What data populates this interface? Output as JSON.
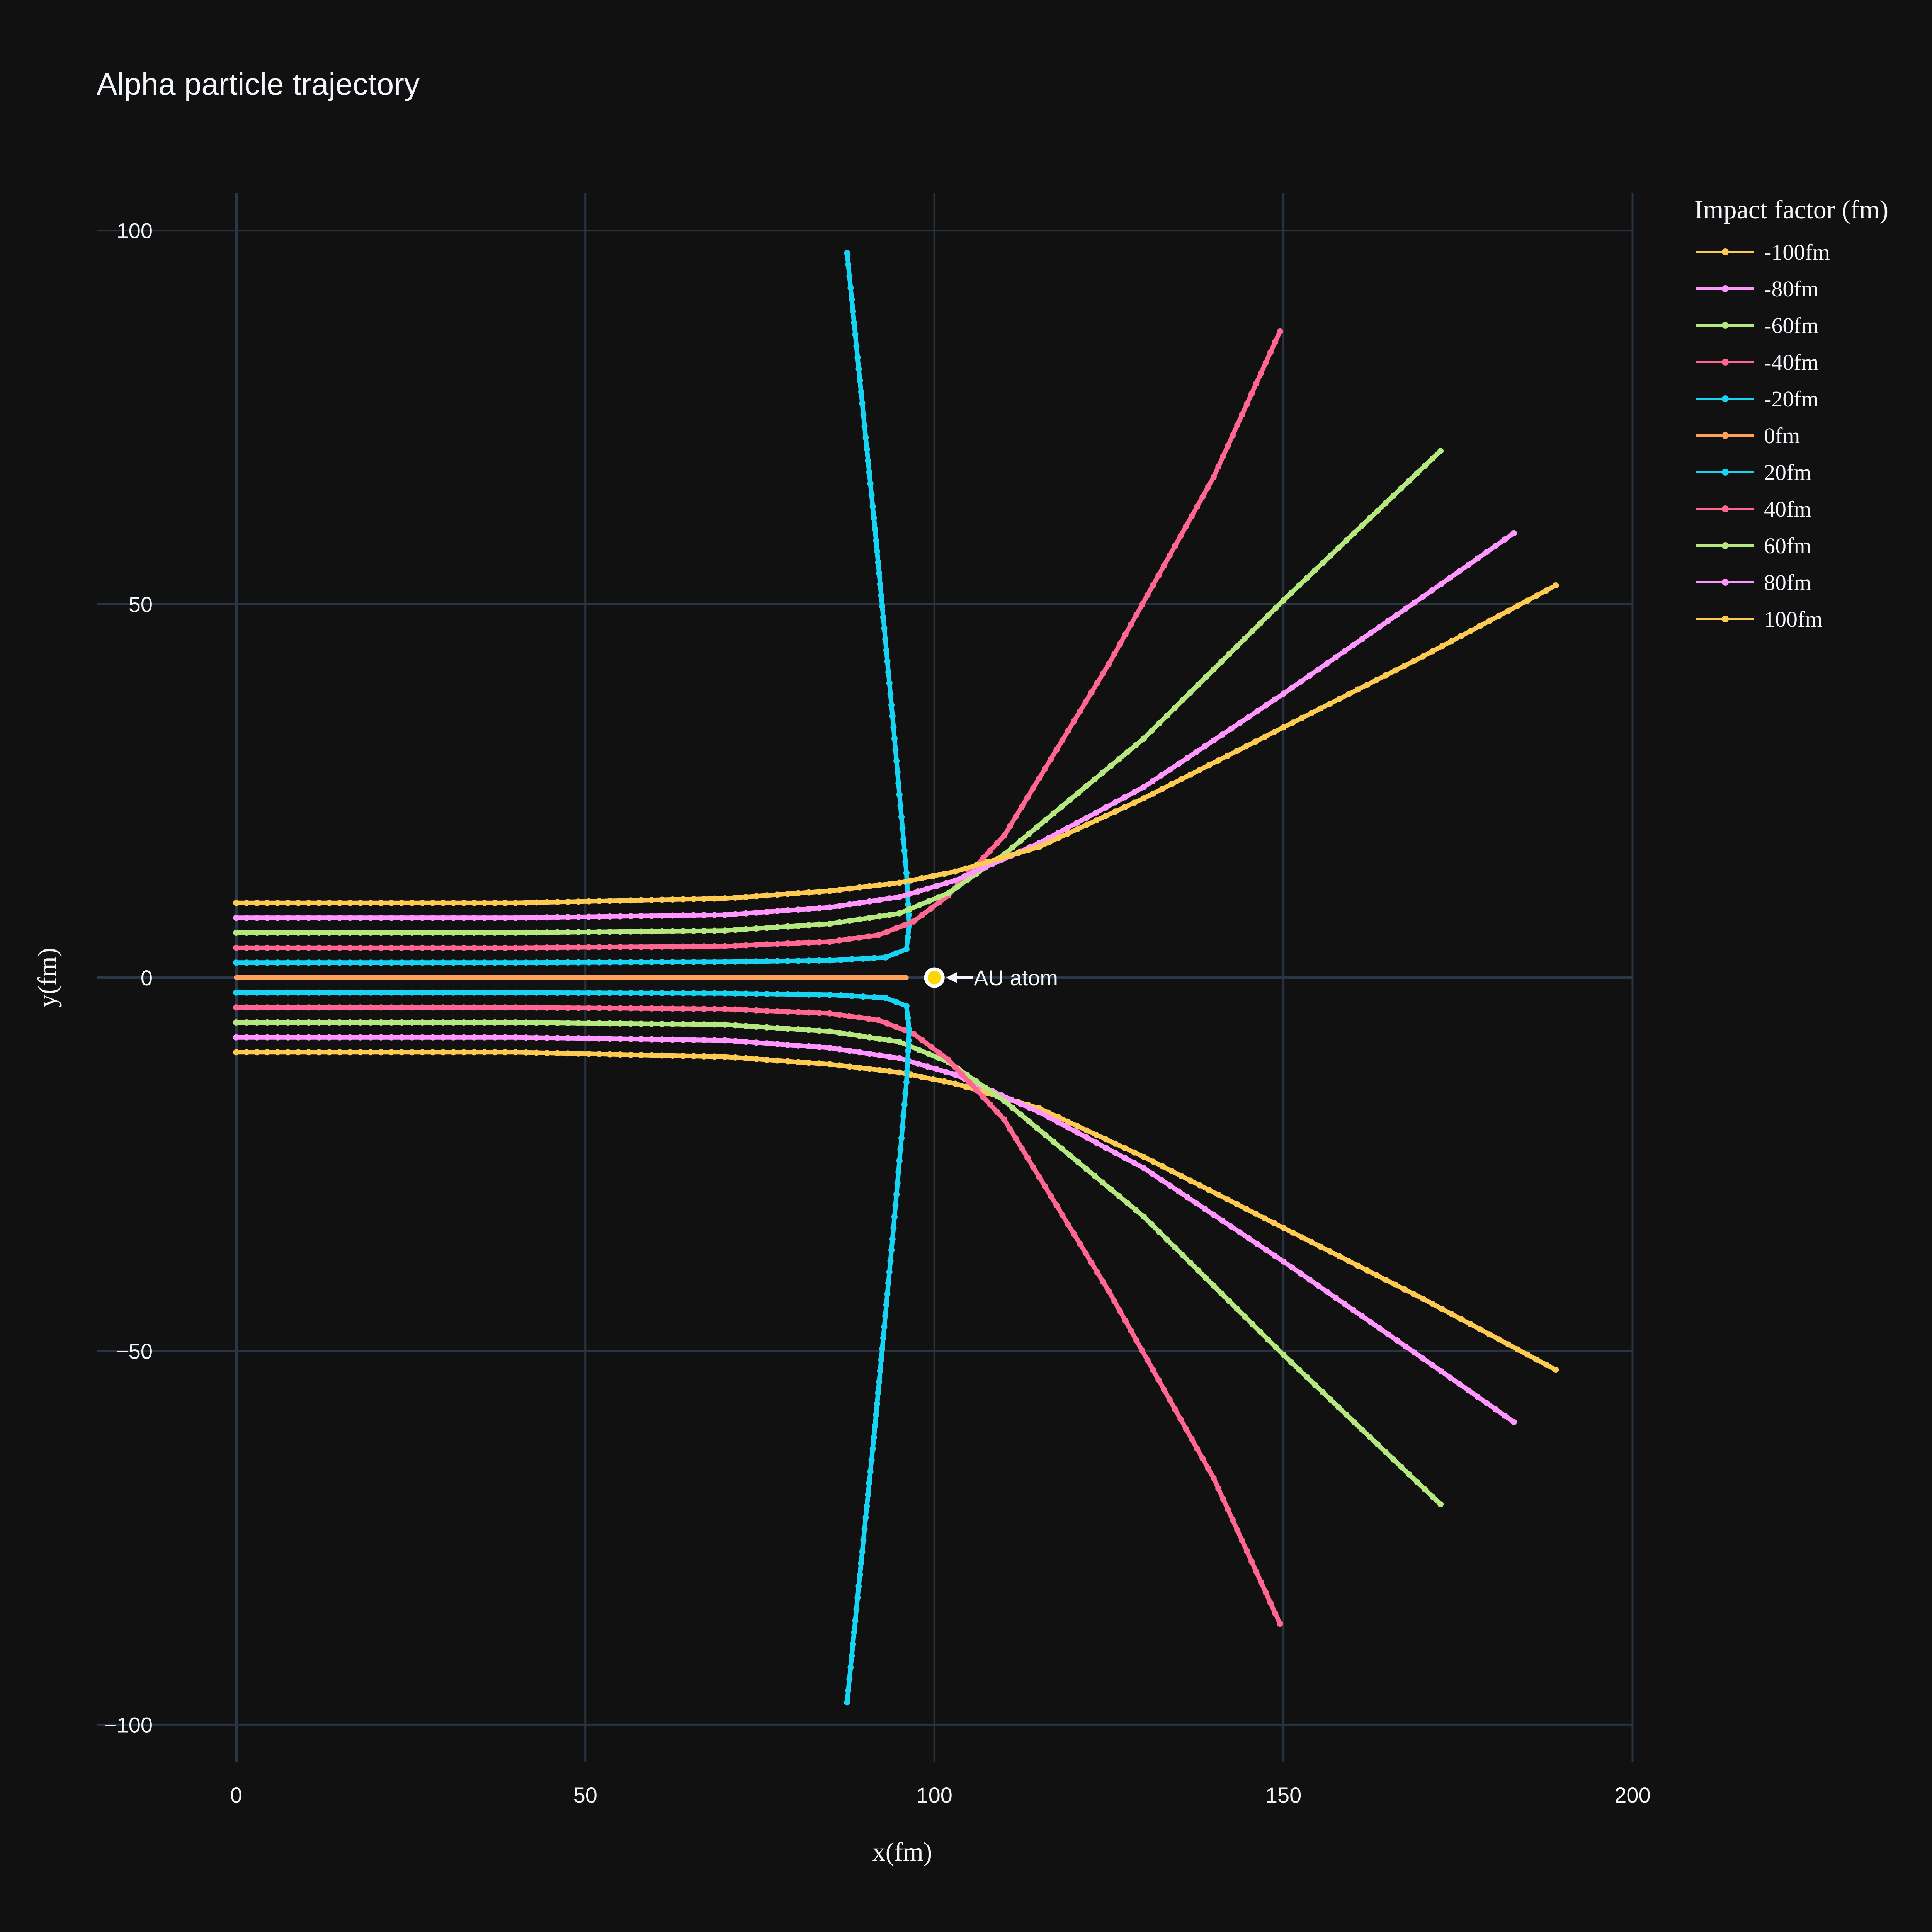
{
  "chart_data": {
    "type": "line",
    "title": "Alpha particle trajectory",
    "xlabel": "x(fm)",
    "ylabel": "y(fm)",
    "xlim": [
      -20,
      200
    ],
    "ylim": [
      -105,
      105
    ],
    "x_ticks": [
      0,
      50,
      100,
      150,
      200
    ],
    "y_ticks": [
      -100,
      -50,
      0,
      50,
      100
    ],
    "x_tick_labels": [
      "0",
      "50",
      "100",
      "150",
      "200"
    ],
    "y_tick_labels": [
      "−100",
      "−50",
      "0",
      "50",
      "100"
    ],
    "grid": true,
    "legend_title": "Impact factor (fm)",
    "legend_position": "right",
    "series": [
      {
        "name": "-100fm",
        "color": "#FECB52",
        "points": [
          [
            0,
            -10
          ],
          [
            40,
            -10
          ],
          [
            70,
            -10.6
          ],
          [
            85,
            -11.6
          ],
          [
            95,
            -12.7
          ],
          [
            103,
            -14.2
          ],
          [
            115,
            -17.5
          ],
          [
            130,
            -24
          ],
          [
            150,
            -33.5
          ],
          [
            170,
            -43
          ],
          [
            189,
            -52.5
          ]
        ]
      },
      {
        "name": "-80fm",
        "color": "#FF97FF",
        "points": [
          [
            0,
            -8
          ],
          [
            40,
            -8
          ],
          [
            70,
            -8.4
          ],
          [
            85,
            -9.4
          ],
          [
            95,
            -10.8
          ],
          [
            103,
            -13
          ],
          [
            115,
            -18
          ],
          [
            130,
            -25.5
          ],
          [
            150,
            -38
          ],
          [
            170,
            -51
          ],
          [
            183,
            -59.5
          ]
        ]
      },
      {
        "name": "-60fm",
        "color": "#B6E880",
        "points": [
          [
            0,
            -6
          ],
          [
            40,
            -6
          ],
          [
            70,
            -6.3
          ],
          [
            85,
            -7.2
          ],
          [
            95,
            -8.6
          ],
          [
            102,
            -11.3
          ],
          [
            110,
            -16.5
          ],
          [
            130,
            -32
          ],
          [
            150,
            -50.5
          ],
          [
            172.5,
            -70.5
          ]
        ]
      },
      {
        "name": "-40fm",
        "color": "#FF6692",
        "points": [
          [
            0,
            -4
          ],
          [
            40,
            -4
          ],
          [
            70,
            -4.2
          ],
          [
            85,
            -4.8
          ],
          [
            92,
            -5.7
          ],
          [
            97,
            -7.5
          ],
          [
            102,
            -11
          ],
          [
            110,
            -19
          ],
          [
            125,
            -42
          ],
          [
            140,
            -67
          ],
          [
            149.5,
            -86.5
          ]
        ]
      },
      {
        "name": "-20fm",
        "color": "#19D3F3",
        "points": [
          [
            0,
            -2
          ],
          [
            40,
            -2
          ],
          [
            70,
            -2.1
          ],
          [
            85,
            -2.3
          ],
          [
            93,
            -2.7
          ],
          [
            96,
            -3.8
          ],
          [
            96.4,
            -7
          ],
          [
            96,
            -14
          ],
          [
            94,
            -35
          ],
          [
            91.5,
            -60
          ],
          [
            89,
            -83
          ],
          [
            87.5,
            -97
          ]
        ]
      },
      {
        "name": "0fm",
        "color": "#FFA15A",
        "points": [
          [
            0,
            0
          ],
          [
            96,
            0
          ]
        ]
      },
      {
        "name": "20fm",
        "color": "#19D3F3",
        "points": [
          [
            0,
            2
          ],
          [
            40,
            2
          ],
          [
            70,
            2.1
          ],
          [
            85,
            2.3
          ],
          [
            93,
            2.7
          ],
          [
            96,
            3.8
          ],
          [
            96.4,
            7
          ],
          [
            96,
            14
          ],
          [
            94,
            35
          ],
          [
            91.5,
            60
          ],
          [
            89,
            83
          ],
          [
            87.5,
            97
          ]
        ]
      },
      {
        "name": "40fm",
        "color": "#FF6692",
        "points": [
          [
            0,
            4
          ],
          [
            40,
            4
          ],
          [
            70,
            4.2
          ],
          [
            85,
            4.8
          ],
          [
            92,
            5.7
          ],
          [
            97,
            7.5
          ],
          [
            102,
            11
          ],
          [
            110,
            19
          ],
          [
            125,
            42
          ],
          [
            140,
            67
          ],
          [
            149.5,
            86.5
          ]
        ]
      },
      {
        "name": "60fm",
        "color": "#B6E880",
        "points": [
          [
            0,
            6
          ],
          [
            40,
            6
          ],
          [
            70,
            6.3
          ],
          [
            85,
            7.2
          ],
          [
            95,
            8.6
          ],
          [
            102,
            11.3
          ],
          [
            110,
            16.5
          ],
          [
            130,
            32
          ],
          [
            150,
            50.5
          ],
          [
            172.5,
            70.5
          ]
        ]
      },
      {
        "name": "80fm",
        "color": "#FF97FF",
        "points": [
          [
            0,
            8
          ],
          [
            40,
            8
          ],
          [
            70,
            8.4
          ],
          [
            85,
            9.4
          ],
          [
            95,
            10.8
          ],
          [
            103,
            13
          ],
          [
            115,
            18
          ],
          [
            130,
            25.5
          ],
          [
            150,
            38
          ],
          [
            170,
            51
          ],
          [
            183,
            59.5
          ]
        ]
      },
      {
        "name": "100fm",
        "color": "#FECB52",
        "points": [
          [
            0,
            10
          ],
          [
            40,
            10
          ],
          [
            70,
            10.6
          ],
          [
            85,
            11.6
          ],
          [
            95,
            12.7
          ],
          [
            103,
            14.2
          ],
          [
            115,
            17.5
          ],
          [
            130,
            24
          ],
          [
            150,
            33.5
          ],
          [
            170,
            43
          ],
          [
            189,
            52.5
          ]
        ]
      }
    ],
    "legend_order": [
      "-100fm",
      "-80fm",
      "-60fm",
      "-40fm",
      "-20fm",
      "0fm",
      "20fm",
      "40fm",
      "60fm",
      "80fm",
      "100fm"
    ],
    "annotation": {
      "text": "AU atom",
      "x": 100,
      "y": 0,
      "marker_color": "#FFD700"
    }
  }
}
